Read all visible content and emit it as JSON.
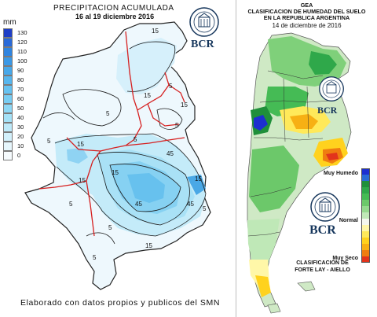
{
  "left_panel": {
    "title": "PRECIPITACION ACUMULADA",
    "subtitle": "16 al 19 diciembre 2016",
    "unit": "mm",
    "brand": "BCR",
    "footer": "Elaborado con datos propios y publicos del SMN",
    "colorbar": [
      {
        "value": "130",
        "color": "#1f3fc7"
      },
      {
        "value": "120",
        "color": "#2a6ad8"
      },
      {
        "value": "110",
        "color": "#2f84e0"
      },
      {
        "value": "100",
        "color": "#3a98e6"
      },
      {
        "value": "90",
        "color": "#47a8ea"
      },
      {
        "value": "80",
        "color": "#56b6ee"
      },
      {
        "value": "70",
        "color": "#66c2f1"
      },
      {
        "value": "60",
        "color": "#78cdf3"
      },
      {
        "value": "50",
        "color": "#8dd7f5"
      },
      {
        "value": "40",
        "color": "#a4e1f7"
      },
      {
        "value": "30",
        "color": "#bde9f9"
      },
      {
        "value": "20",
        "color": "#d2f0fb"
      },
      {
        "value": "10",
        "color": "#e6f6fc"
      },
      {
        "value": "0",
        "color": "#f6fbfe"
      }
    ],
    "contour_labels": [
      "15",
      "15",
      "15",
      "5",
      "5",
      "15",
      "5",
      "5",
      "15",
      "45",
      "45",
      "45",
      "15",
      "5",
      "5",
      "5",
      "5",
      "15",
      "15",
      "5"
    ]
  },
  "right_panel": {
    "title_lines": [
      "GEA",
      "CLASIFICACION DE HUMEDAD DEL SUELO",
      "EN LA REPUBLICA ARGENTINA"
    ],
    "date": "14 de diciembre de 2016",
    "brand": "BCR",
    "classification_lines": [
      "CLASIFICACION DE",
      "FORTE LAY - AIELLO"
    ],
    "legend": [
      {
        "label": "Muy Humedo",
        "colors": [
          "#1d2fd0",
          "#2a6bd6"
        ]
      },
      {
        "label": "",
        "colors": [
          "#1f8f3a",
          "#2fa84a",
          "#45bb55"
        ]
      },
      {
        "label": "",
        "colors": [
          "#6cc86a",
          "#95d98e",
          "#bfe8b7"
        ]
      },
      {
        "label": "Normal",
        "colors": [
          "#f4f7ef"
        ]
      },
      {
        "label": "",
        "colors": [
          "#fff7a8",
          "#ffe95a",
          "#ffd21e"
        ]
      },
      {
        "label": "",
        "colors": [
          "#f7b014",
          "#ef7d10"
        ]
      },
      {
        "label": "Muy Seco",
        "colors": [
          "#e2341c"
        ]
      }
    ]
  }
}
